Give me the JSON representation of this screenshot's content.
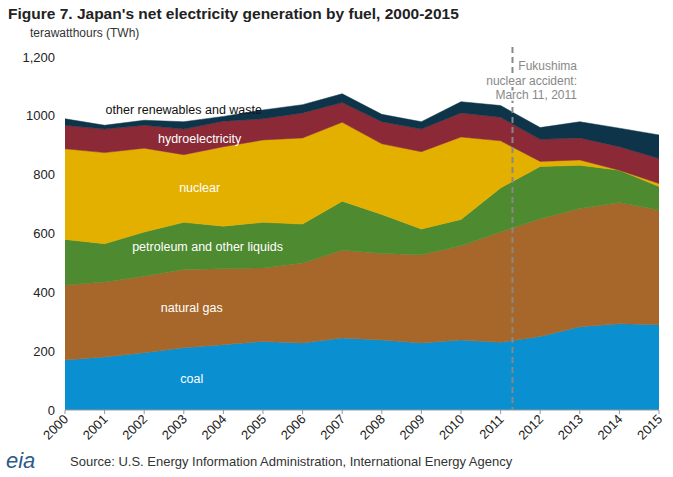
{
  "chart_data": {
    "type": "area",
    "stacked": true,
    "title": "Figure 7. Japan's net electricity generation by fuel, 2000-2015",
    "subtitle": "terawatthours (TWh)",
    "source": "Source: U.S. Energy Information Administration, International Energy Agency",
    "logo": "eia",
    "annotation": {
      "text": [
        "Fukushima",
        "nuclear accident:",
        "March 11, 2011"
      ],
      "x": 2011.3,
      "line_style": "dashed"
    },
    "x": [
      2000,
      2001,
      2002,
      2003,
      2004,
      2005,
      2006,
      2007,
      2008,
      2009,
      2010,
      2011,
      2012,
      2013,
      2014,
      2015
    ],
    "xlim": [
      2000,
      2015
    ],
    "xticks": [
      2000,
      2001,
      2002,
      2003,
      2004,
      2005,
      2006,
      2007,
      2008,
      2009,
      2010,
      2011,
      2012,
      2013,
      2014,
      2015
    ],
    "ylim": [
      0,
      1200
    ],
    "yticks": [
      0,
      200,
      400,
      600,
      800,
      1000,
      {
        "value": 1200,
        "label": "1,200"
      }
    ],
    "grid": false,
    "series": [
      {
        "name": "coal",
        "color": "#0a8fd0",
        "values": [
          170,
          180,
          195,
          212,
          222,
          233,
          228,
          245,
          238,
          228,
          238,
          230,
          250,
          283,
          293,
          290
        ]
      },
      {
        "name": "natural gas",
        "color": "#a7672a",
        "values": [
          255,
          255,
          260,
          266,
          258,
          250,
          272,
          298,
          294,
          300,
          320,
          375,
          400,
          402,
          412,
          390
        ]
      },
      {
        "name": "petroleum and other liquids",
        "color": "#4e8a2f",
        "values": [
          155,
          130,
          150,
          160,
          145,
          155,
          132,
          167,
          133,
          87,
          90,
          150,
          178,
          147,
          110,
          80
        ]
      },
      {
        "name": "nuclear",
        "color": "#e4b000",
        "values": [
          308,
          310,
          285,
          230,
          270,
          280,
          293,
          268,
          240,
          263,
          280,
          160,
          17,
          18,
          0,
          10
        ]
      },
      {
        "name": "hydroelectricity",
        "color": "#8b2a36",
        "values": [
          80,
          80,
          78,
          87,
          87,
          72,
          85,
          67,
          75,
          77,
          82,
          80,
          75,
          75,
          80,
          85
        ]
      },
      {
        "name": "other renewables  and waste",
        "color": "#0d3449",
        "values": [
          22,
          13,
          17,
          25,
          16,
          30,
          28,
          30,
          25,
          25,
          38,
          40,
          40,
          55,
          63,
          80
        ]
      }
    ]
  }
}
